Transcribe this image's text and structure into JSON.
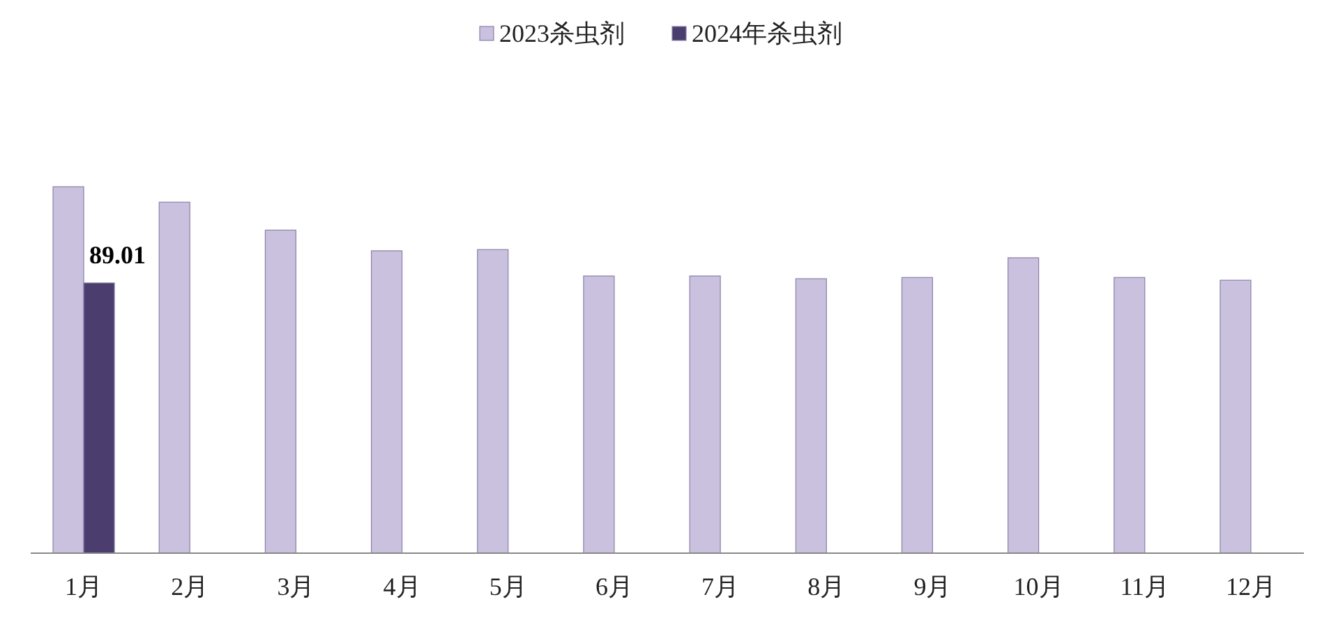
{
  "chart_data": {
    "type": "bar",
    "categories": [
      "1月",
      "2月",
      "3月",
      "4月",
      "5月",
      "6月",
      "7月",
      "8月",
      "9月",
      "10月",
      "11月",
      "12月"
    ],
    "series": [
      {
        "name": "2023杀虫剂",
        "color": "#c9c1de",
        "values": [
          120.7,
          115.6,
          106.4,
          99.6,
          100.0,
          91.3,
          91.3,
          90.4,
          90.8,
          97.3,
          90.8,
          89.9
        ]
      },
      {
        "name": "2024年杀虫剂",
        "color": "#4b3d6e",
        "values": [
          89.01,
          null,
          null,
          null,
          null,
          null,
          null,
          null,
          null,
          null,
          null,
          null
        ],
        "value_labels": [
          "89.01",
          null,
          null,
          null,
          null,
          null,
          null,
          null,
          null,
          null,
          null,
          null
        ]
      }
    ],
    "legend": "top"
  }
}
